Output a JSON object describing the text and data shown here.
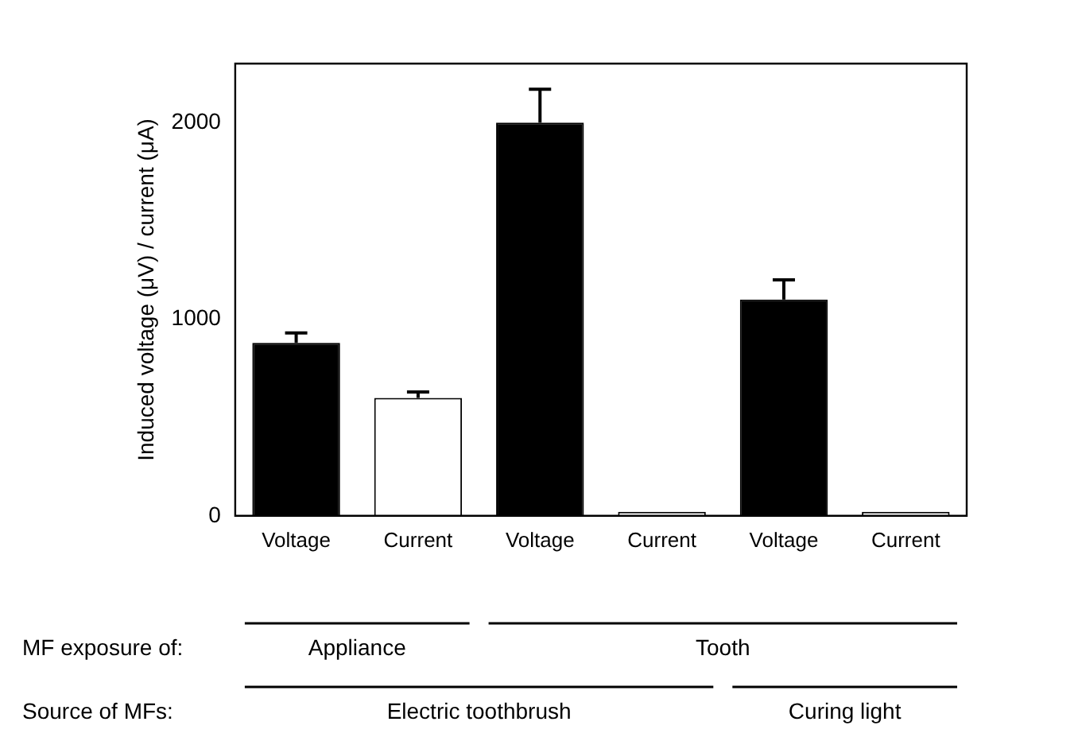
{
  "chart_data": {
    "type": "bar",
    "ylabel": "Induced voltage (μV) / current (μA)",
    "categories": [
      "Voltage",
      "Current",
      "Voltage",
      "Current",
      "Voltage",
      "Current"
    ],
    "values": [
      880,
      600,
      2000,
      20,
      1100,
      20
    ],
    "colors": [
      "#000000",
      "#ffffff",
      "#000000",
      "#ffffff",
      "#000000",
      "#ffffff"
    ],
    "errors": [
      [
        880,
        930
      ],
      [
        600,
        630
      ],
      [
        2000,
        2170
      ],
      null,
      [
        1100,
        1200
      ],
      null
    ],
    "ylim": [
      0,
      2300
    ],
    "yticks": [
      0,
      1000,
      2000
    ],
    "grid": false,
    "legend": false,
    "annotations": [
      "MF exposure of:",
      "Appliance",
      "Tooth",
      "Source of MFs:",
      "Electric toothbrush",
      "Curing light"
    ]
  }
}
